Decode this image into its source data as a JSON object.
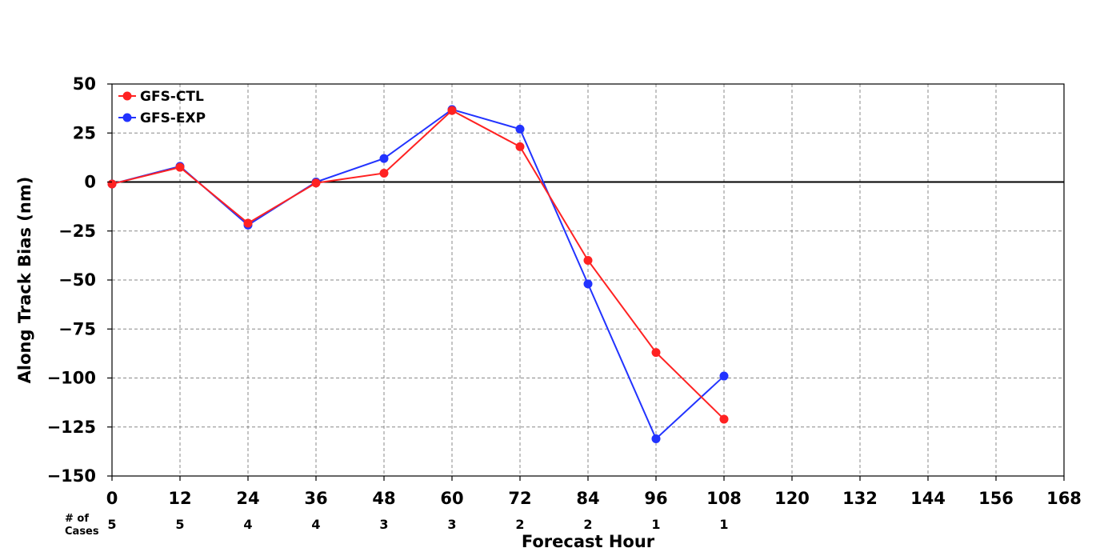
{
  "chart_data": {
    "type": "line",
    "title": "",
    "xlabel": "Forecast Hour",
    "ylabel": "Along Track Bias (nm)",
    "xlim": [
      0,
      168
    ],
    "ylim": [
      -150,
      50
    ],
    "x_ticks": [
      0,
      12,
      24,
      36,
      48,
      60,
      72,
      84,
      96,
      108,
      120,
      132,
      144,
      156,
      168
    ],
    "y_ticks": [
      50,
      25,
      0,
      -25,
      -50,
      -75,
      -100,
      -125,
      -150
    ],
    "y_tick_labels": [
      "50",
      "25",
      "0",
      "−25",
      "−50",
      "−75",
      "−100",
      "−125",
      "−150"
    ],
    "grid": true,
    "grid_style": "dashed",
    "zero_line": true,
    "legend_position": "top-left",
    "series": [
      {
        "name": "GFS-CTL",
        "color": "#ff2222",
        "x": [
          0,
          12,
          24,
          36,
          48,
          60,
          72,
          84,
          96,
          108
        ],
        "values": [
          -1,
          7.5,
          -21,
          -0.5,
          4.5,
          36.5,
          18,
          -40,
          -87,
          -121
        ]
      },
      {
        "name": "GFS-EXP",
        "color": "#2233ff",
        "x": [
          0,
          12,
          24,
          36,
          48,
          60,
          72,
          84,
          96,
          108
        ],
        "values": [
          -1,
          8,
          -22,
          0,
          12,
          37,
          27,
          -52,
          -131,
          -99
        ]
      }
    ],
    "cases": {
      "label_line1": "# of",
      "label_line2": "Cases",
      "x": [
        0,
        12,
        24,
        36,
        48,
        60,
        72,
        84,
        96,
        108
      ],
      "counts": [
        "5",
        "5",
        "4",
        "4",
        "3",
        "3",
        "2",
        "2",
        "1",
        "1"
      ]
    }
  }
}
